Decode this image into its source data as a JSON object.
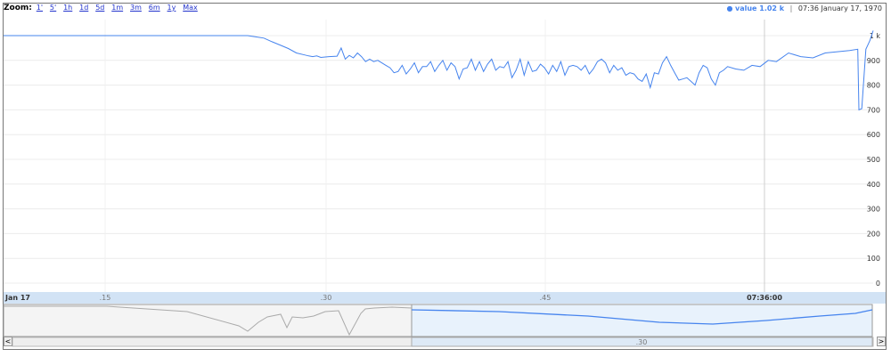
{
  "zoom": {
    "label": "Zoom:",
    "options": [
      "1'",
      "5'",
      "1h",
      "1d",
      "5d",
      "1m",
      "3m",
      "6m",
      "1y",
      "Max"
    ]
  },
  "legend": {
    "bullet": "●",
    "value_text": "value 1.02 k",
    "separator": "|",
    "timestamp": "07:36 January 17, 1970"
  },
  "navigator": {
    "left_arrow": "<",
    "right_arrow": ">",
    "scroll_label": ".30"
  },
  "chart_data": {
    "type": "line",
    "title": "",
    "xlabel": "",
    "ylabel": "",
    "ylim": [
      0,
      1000
    ],
    "y_ticks": [
      "1 k",
      "900",
      "800",
      "700",
      "600",
      "500",
      "400",
      "300",
      "200",
      "100",
      "0"
    ],
    "x_ticks": [
      "Jan 17",
      ".15",
      ".30",
      ".45",
      "07:36:00"
    ],
    "grid": true,
    "line_color": "#4684ee",
    "series": [
      {
        "name": "value",
        "x": [
          0,
          20,
          40,
          60,
          62,
          64,
          66,
          68,
          70,
          72,
          74,
          75,
          76,
          77,
          78,
          80,
          82,
          83,
          84,
          85,
          86,
          87,
          88,
          89,
          90,
          91,
          92,
          94,
          95,
          96,
          97,
          98,
          99,
          100,
          101,
          102,
          103,
          104,
          105,
          106,
          107,
          108,
          109,
          110,
          111,
          112,
          113,
          114,
          115,
          116,
          117,
          118,
          119,
          120,
          121,
          122,
          123,
          124,
          125,
          126,
          127,
          128,
          129,
          130,
          131,
          132,
          133,
          134,
          135,
          136,
          137,
          138,
          139,
          140,
          141,
          142,
          143,
          144,
          145,
          146,
          147,
          148,
          149,
          150,
          151,
          152,
          153,
          154,
          155,
          156,
          157,
          158,
          159,
          160,
          161,
          162,
          163,
          164,
          165,
          166,
          167,
          168,
          169,
          170,
          171,
          172,
          173,
          174,
          175,
          176,
          177,
          178,
          180,
          182,
          184,
          186,
          188,
          190,
          193,
          196,
          199,
          202,
          205,
          208,
          210,
          210.3,
          211,
          212,
          213,
          213.8
        ],
        "values": [
          1000,
          1000,
          1000,
          1000,
          995,
          990,
          975,
          962,
          948,
          930,
          922,
          918,
          915,
          918,
          912,
          915,
          917,
          950,
          905,
          920,
          910,
          930,
          915,
          895,
          905,
          895,
          900,
          880,
          870,
          850,
          855,
          880,
          845,
          865,
          890,
          850,
          875,
          875,
          895,
          855,
          880,
          900,
          860,
          890,
          875,
          825,
          865,
          870,
          905,
          860,
          895,
          855,
          885,
          905,
          860,
          875,
          870,
          895,
          830,
          860,
          905,
          840,
          895,
          855,
          860,
          885,
          870,
          845,
          880,
          855,
          895,
          840,
          875,
          880,
          875,
          860,
          880,
          845,
          865,
          895,
          905,
          890,
          850,
          880,
          860,
          870,
          840,
          850,
          845,
          825,
          815,
          845,
          790,
          850,
          845,
          890,
          915,
          880,
          850,
          820,
          825,
          830,
          815,
          800,
          850,
          880,
          870,
          825,
          800,
          850,
          860,
          875,
          865,
          860,
          880,
          875,
          900,
          895,
          930,
          915,
          910,
          930,
          935,
          940,
          945,
          700,
          705,
          945,
          980,
          1020
        ]
      }
    ]
  }
}
